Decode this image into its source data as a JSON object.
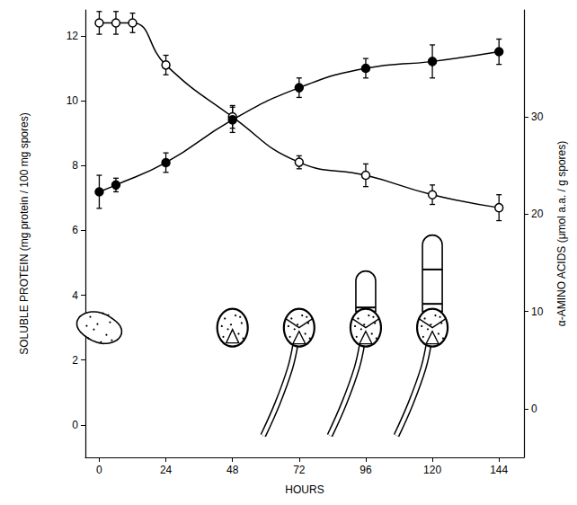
{
  "chart_data": {
    "type": "line",
    "xlabel": "HOURS",
    "ylabel": "SOLUBLE PROTEIN (mg protein / 100 mg spores)",
    "y2label": "α-AMINO ACIDS (μmol a.a. / g spores)",
    "xlim": [
      -5,
      153
    ],
    "xticks": [
      0,
      24,
      48,
      72,
      96,
      120,
      144
    ],
    "ylim": [
      -1,
      12.8
    ],
    "yticks": [
      0,
      2,
      4,
      6,
      8,
      10,
      12
    ],
    "y2lim": [
      -5,
      41
    ],
    "y2ticks": [
      0,
      10,
      20,
      30
    ],
    "grid": false,
    "series": [
      {
        "x": [
          0,
          6,
          12,
          24,
          48,
          72,
          96,
          120,
          144
        ],
        "values": [
          12.4,
          12.4,
          12.4,
          11.1,
          9.5,
          8.1,
          7.7,
          7.1,
          6.7
        ],
        "errors": [
          0.35,
          0.35,
          0.3,
          0.3,
          0.35,
          0.2,
          0.35,
          0.3,
          0.4
        ],
        "color": "#000000",
        "marker": "open circle",
        "line_style": "solid"
      },
      {
        "x": [
          0,
          6,
          24,
          48,
          72,
          96,
          120,
          144
        ],
        "values": [
          22.3,
          23.0,
          25.3,
          29.7,
          33.0,
          35.0,
          35.7,
          36.7
        ],
        "errors": [
          1.7,
          0.7,
          1.0,
          1.3,
          1.0,
          1.0,
          1.7,
          1.3
        ],
        "color": "#000000",
        "marker": "filled circle",
        "line_style": "solid",
        "axis": "y2"
      }
    ]
  }
}
